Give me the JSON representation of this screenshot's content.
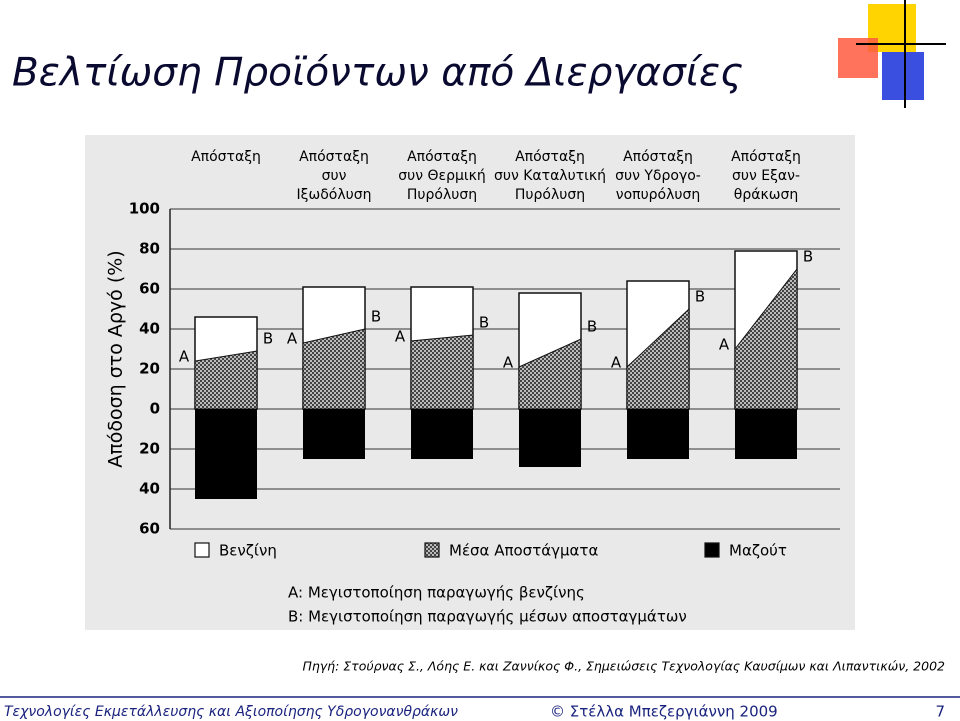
{
  "slide": {
    "title": "Βελτίωση Προϊόντων από Διεργασίες",
    "source": "Πηγή: Στούρνας Σ., Λόης Ε. και Ζαννίκος Φ., Σημειώσεις Τεχνολογίας Καυσίμων και Λιπαντικών, 2002",
    "footer_left": "Τεχνολογίες Εκμετάλλευσης και Αξιοποίησης Υδρογονανθράκων",
    "footer_center": "© Στέλλα Μπεζεργιάννη 2009",
    "page_number": "7"
  },
  "chart_data": {
    "type": "yield-bars",
    "y_label": "Απόδοση στο Αργό (%)",
    "categories": [
      [
        "Απόσταξη"
      ],
      [
        "Απόσταξη",
        "συν",
        "Ιξωδόλυση"
      ],
      [
        "Απόσταξη",
        "συν Θερμική",
        "Πυρόλυση"
      ],
      [
        "Απόσταξη",
        "συν Καταλυτική",
        "Πυρόλυση"
      ],
      [
        "Απόσταξη",
        "συν Υδρογο-",
        "νοπυρόλυση"
      ],
      [
        "Απόσταξη",
        "συν Εξαν-",
        "θράκωση"
      ]
    ],
    "series": [
      {
        "name": "Βενζίνη",
        "color": "#ffffff",
        "values": [
          46,
          61,
          61,
          58,
          64,
          79
        ]
      },
      {
        "name": "Μέσα Αποστάγματα",
        "color": "#444444",
        "values": [
          [
            24,
            29
          ],
          [
            33,
            40
          ],
          [
            34,
            37
          ],
          [
            21,
            35
          ],
          [
            21,
            50
          ],
          [
            30,
            70
          ]
        ]
      },
      {
        "name": "Μαζούτ",
        "color": "#000000",
        "values": [
          -45,
          -25,
          -25,
          -29,
          -25,
          -25
        ]
      }
    ],
    "point_labels": [
      "A",
      "B"
    ],
    "notes": [
      "A: Μεγιστοποίηση παραγωγής βενζίνης",
      "B: Μεγιστοποίηση παραγωγής μέσων αποσταγμάτων"
    ],
    "ylim": [
      -60,
      100
    ],
    "yticks": [
      100,
      80,
      60,
      40,
      20,
      0,
      {
        "value": -20,
        "label": "20"
      },
      {
        "value": -40,
        "label": "40"
      },
      {
        "value": -60,
        "label": "60"
      }
    ],
    "grid": true
  }
}
